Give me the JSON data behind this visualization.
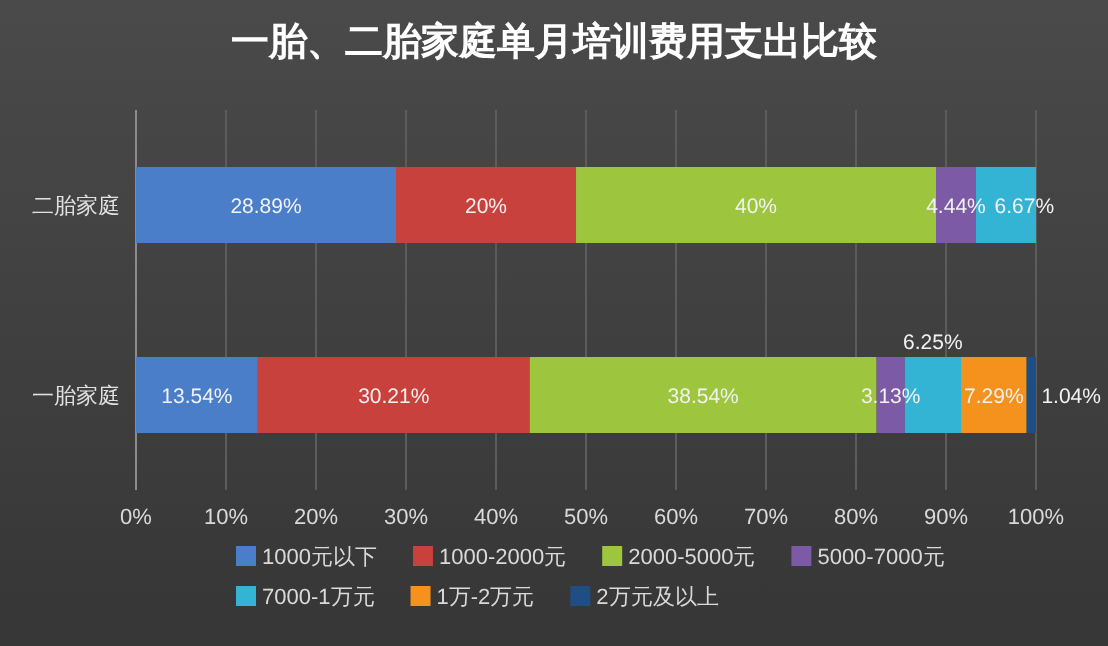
{
  "chart_data": {
    "type": "bar",
    "orientation": "horizontal",
    "stacked": true,
    "title": "一胎、二胎家庭单月培训费用支出比较",
    "categories": [
      "二胎家庭",
      "一胎家庭"
    ],
    "series": [
      {
        "name": "1000元以下",
        "color": "#4a7ec8",
        "values": [
          28.89,
          13.54
        ],
        "value_labels": [
          "28.89%",
          "13.54%"
        ]
      },
      {
        "name": "1000-2000元",
        "color": "#c9413c",
        "values": [
          20,
          30.21
        ],
        "value_labels": [
          "20%",
          "30.21%"
        ]
      },
      {
        "name": "2000-5000元",
        "color": "#9dc53e",
        "values": [
          40,
          38.54
        ],
        "value_labels": [
          "40%",
          "38.54%"
        ]
      },
      {
        "name": "5000-7000元",
        "color": "#7d5aa6",
        "values": [
          4.44,
          3.13
        ],
        "value_labels": [
          "4.44%",
          "3.13%"
        ]
      },
      {
        "name": "7000-1万元",
        "color": "#34b4d4",
        "values": [
          6.67,
          6.25
        ],
        "value_labels": [
          "6.67%",
          "6.25%"
        ]
      },
      {
        "name": "1万-2万元",
        "color": "#f5921e",
        "values": [
          null,
          7.29
        ],
        "value_labels": [
          null,
          "7.29%"
        ]
      },
      {
        "name": "2万元及以上",
        "color": "#1f4e85",
        "values": [
          null,
          1.04
        ],
        "value_labels": [
          null,
          "1.04%"
        ]
      }
    ],
    "xlim": [
      0,
      100
    ],
    "xticks": [
      {
        "value": 0,
        "label": "0%"
      },
      {
        "value": 10,
        "label": "10%"
      },
      {
        "value": 20,
        "label": "20%"
      },
      {
        "value": 30,
        "label": "30%"
      },
      {
        "value": 40,
        "label": "40%"
      },
      {
        "value": 50,
        "label": "50%"
      },
      {
        "value": 60,
        "label": "60%"
      },
      {
        "value": 70,
        "label": "70%"
      },
      {
        "value": 80,
        "label": "80%"
      },
      {
        "value": 90,
        "label": "90%"
      },
      {
        "value": 100,
        "label": "100%"
      }
    ],
    "grid": "x",
    "legend": "bottom"
  }
}
